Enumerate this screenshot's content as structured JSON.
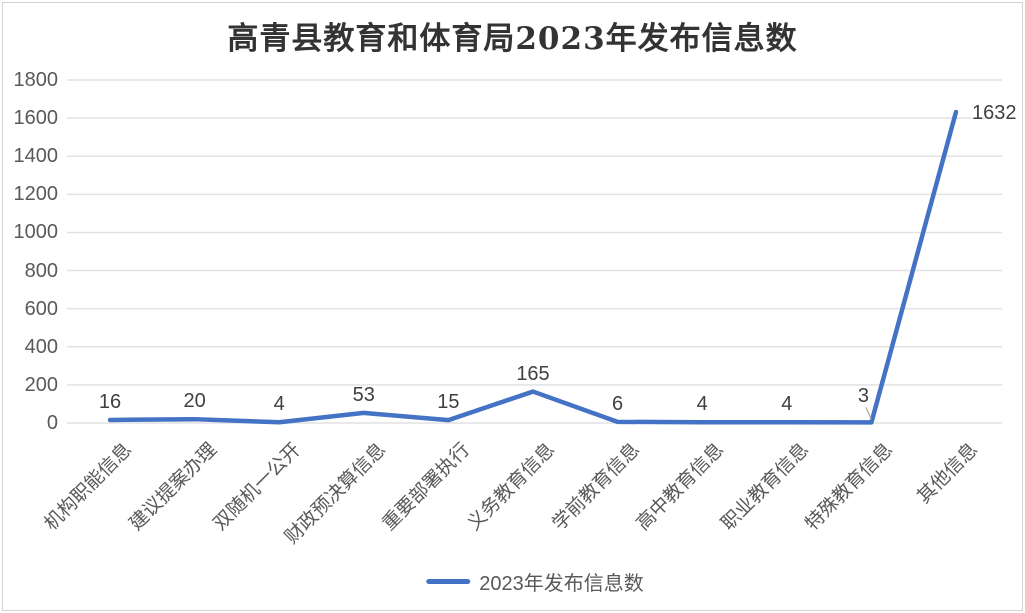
{
  "chart": {
    "title": "高青县教育和体育局2023年发布信息数",
    "legend_label": "2023年发布信息数"
  },
  "chart_data": {
    "type": "line",
    "title": "高青县教育和体育局2023年发布信息数",
    "categories": [
      "机构职能信息",
      "建议提案办理",
      "双随机一公开",
      "财政预决算信息",
      "重要部署执行",
      "义务教育信息",
      "学前教育信息",
      "高中教育信息",
      "职业教育信息",
      "特殊教育信息",
      "其他信息"
    ],
    "series": [
      {
        "name": "2023年发布信息数",
        "values": [
          16,
          20,
          4,
          53,
          15,
          165,
          6,
          4,
          4,
          3,
          1632
        ]
      }
    ],
    "data_labels": [
      "16",
      "20",
      "4",
      "53",
      "15",
      "165",
      "6",
      "4",
      "4",
      "3",
      "1632"
    ],
    "ylabel": "",
    "xlabel": "",
    "ylim": [
      0,
      1800
    ],
    "ytick_step": 200,
    "ytick_labels": [
      "0",
      "200",
      "400",
      "600",
      "800",
      "1000",
      "1200",
      "1400",
      "1600",
      "1800"
    ],
    "grid": "horizontal",
    "legend_position": "bottom",
    "colors": {
      "line": "#4472C4",
      "gridline": "#e2e2e2",
      "axis_text": "#595959",
      "data_label_text": "#404040",
      "title_text": "#333333",
      "leader_line": "#a6a6a6",
      "frame_border": "#d2d2d2"
    }
  }
}
